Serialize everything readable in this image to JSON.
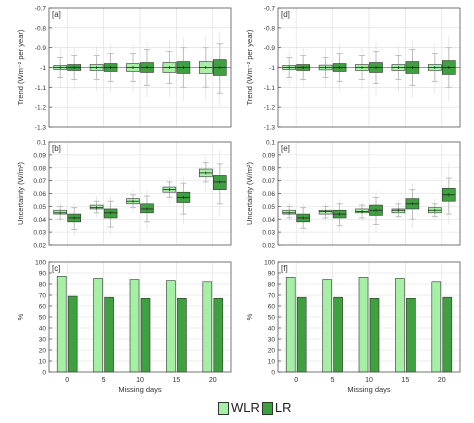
{
  "colors": {
    "wlr": "#a6f0a6",
    "lr": "#3fa03f",
    "reference_line": "#4fb4d8",
    "grid": "#dcdcdc",
    "axis": "#555555",
    "whisker": "#b8b8b8"
  },
  "legend": {
    "position": "bottom-center",
    "items": [
      {
        "key": "wlr",
        "label": "WLR"
      },
      {
        "key": "lr",
        "label": "LR"
      }
    ]
  },
  "chart_data": [
    {
      "panel": "[a]",
      "type": "box",
      "xlabel": "",
      "ylabel": "Trend (Wm⁻² per year)",
      "categories": [
        "0",
        "5",
        "10",
        "15",
        "20"
      ],
      "show_x_ticklabels": false,
      "ylim": [
        -1.3,
        -0.7
      ],
      "yticks": [
        -1.3,
        -1.2,
        -1.1,
        -1.0,
        -0.9,
        -0.8,
        -0.7
      ],
      "ytick_labels": [
        "-1.3",
        "-1.2",
        "-1.1",
        "-1",
        "-0.9",
        "-0.8",
        "-0.7"
      ],
      "grid": true,
      "reference_line": -1.0,
      "series": [
        {
          "name": "WLR",
          "color_key": "wlr",
          "boxes": [
            {
              "whislo": -1.05,
              "q1": -1.01,
              "med": -1.0,
              "q3": -0.99,
              "whishi": -0.95,
              "out_lo": -1.1,
              "out_hi": -0.9
            },
            {
              "whislo": -1.06,
              "q1": -1.015,
              "med": -1.0,
              "q3": -0.985,
              "whishi": -0.94,
              "out_lo": -1.12,
              "out_hi": -0.89
            },
            {
              "whislo": -1.07,
              "q1": -1.02,
              "med": -1.0,
              "q3": -0.98,
              "whishi": -0.93,
              "out_lo": -1.13,
              "out_hi": -0.88
            },
            {
              "whislo": -1.08,
              "q1": -1.025,
              "med": -1.0,
              "q3": -0.975,
              "whishi": -0.92,
              "out_lo": -1.15,
              "out_hi": -0.86
            },
            {
              "whislo": -1.1,
              "q1": -1.03,
              "med": -1.0,
              "q3": -0.97,
              "whishi": -0.9,
              "out_lo": -1.17,
              "out_hi": -0.84
            }
          ]
        },
        {
          "name": "LR",
          "color_key": "lr",
          "boxes": [
            {
              "whislo": -1.06,
              "q1": -1.015,
              "med": -1.0,
              "q3": -0.985,
              "whishi": -0.94,
              "out_lo": -1.11,
              "out_hi": -0.9
            },
            {
              "whislo": -1.07,
              "q1": -1.02,
              "med": -1.0,
              "q3": -0.98,
              "whishi": -0.93,
              "out_lo": -1.13,
              "out_hi": -0.88
            },
            {
              "whislo": -1.09,
              "q1": -1.025,
              "med": -1.0,
              "q3": -0.975,
              "whishi": -0.91,
              "out_lo": -1.15,
              "out_hi": -0.87
            },
            {
              "whislo": -1.1,
              "q1": -1.03,
              "med": -1.0,
              "q3": -0.97,
              "whishi": -0.9,
              "out_lo": -1.17,
              "out_hi": -0.85
            },
            {
              "whislo": -1.13,
              "q1": -1.04,
              "med": -1.0,
              "q3": -0.96,
              "whishi": -0.88,
              "out_lo": -1.2,
              "out_hi": -0.82
            }
          ]
        }
      ]
    },
    {
      "panel": "[d]",
      "type": "box",
      "xlabel": "",
      "ylabel": "Trend (Wm⁻² per year)",
      "categories": [
        "0",
        "5",
        "10",
        "15",
        "20"
      ],
      "show_x_ticklabels": false,
      "ylim": [
        -1.3,
        -0.7
      ],
      "yticks": [
        -1.3,
        -1.2,
        -1.1,
        -1.0,
        -0.9,
        -0.8,
        -0.7
      ],
      "ytick_labels": [
        "-1.3",
        "-1.2",
        "-1.1",
        "-1",
        "-0.9",
        "-0.8",
        "-0.7"
      ],
      "grid": true,
      "reference_line": -1.0,
      "series": [
        {
          "name": "WLR",
          "color_key": "wlr",
          "boxes": [
            {
              "whislo": -1.05,
              "q1": -1.01,
              "med": -1.0,
              "q3": -0.99,
              "whishi": -0.95,
              "out_lo": -1.09,
              "out_hi": -0.91
            },
            {
              "whislo": -1.05,
              "q1": -1.012,
              "med": -1.0,
              "q3": -0.988,
              "whishi": -0.95,
              "out_lo": -1.1,
              "out_hi": -0.9
            },
            {
              "whislo": -1.06,
              "q1": -1.015,
              "med": -1.0,
              "q3": -0.985,
              "whishi": -0.94,
              "out_lo": -1.11,
              "out_hi": -0.9
            },
            {
              "whislo": -1.06,
              "q1": -1.015,
              "med": -1.0,
              "q3": -0.985,
              "whishi": -0.94,
              "out_lo": -1.12,
              "out_hi": -0.89
            },
            {
              "whislo": -1.07,
              "q1": -1.015,
              "med": -1.0,
              "q3": -0.985,
              "whishi": -0.93,
              "out_lo": -1.13,
              "out_hi": -0.88
            }
          ]
        },
        {
          "name": "LR",
          "color_key": "lr",
          "boxes": [
            {
              "whislo": -1.06,
              "q1": -1.015,
              "med": -1.0,
              "q3": -0.985,
              "whishi": -0.94,
              "out_lo": -1.1,
              "out_hi": -0.9
            },
            {
              "whislo": -1.07,
              "q1": -1.02,
              "med": -1.0,
              "q3": -0.98,
              "whishi": -0.93,
              "out_lo": -1.12,
              "out_hi": -0.88
            },
            {
              "whislo": -1.08,
              "q1": -1.025,
              "med": -1.0,
              "q3": -0.975,
              "whishi": -0.92,
              "out_lo": -1.14,
              "out_hi": -0.87
            },
            {
              "whislo": -1.09,
              "q1": -1.03,
              "med": -1.0,
              "q3": -0.97,
              "whishi": -0.91,
              "out_lo": -1.15,
              "out_hi": -0.86
            },
            {
              "whislo": -1.1,
              "q1": -1.035,
              "med": -1.0,
              "q3": -0.965,
              "whishi": -0.9,
              "out_lo": -1.17,
              "out_hi": -0.84
            }
          ]
        }
      ]
    },
    {
      "panel": "[b]",
      "type": "box",
      "xlabel": "",
      "ylabel": "Uncertainty (W/m²)",
      "categories": [
        "0",
        "5",
        "10",
        "15",
        "20"
      ],
      "show_x_ticklabels": false,
      "ylim": [
        0.02,
        0.1
      ],
      "yticks": [
        0.02,
        0.03,
        0.04,
        0.05,
        0.06,
        0.07,
        0.08,
        0.09,
        0.1
      ],
      "ytick_labels": [
        "0.02",
        "0.03",
        "0.04",
        "0.05",
        "0.06",
        "0.07",
        "0.08",
        "0.09",
        "0.1"
      ],
      "grid": true,
      "series": [
        {
          "name": "WLR",
          "color_key": "wlr",
          "boxes": [
            {
              "whislo": 0.04,
              "q1": 0.044,
              "med": 0.045,
              "q3": 0.047,
              "whishi": 0.05,
              "out_lo": 0.037,
              "out_hi": 0.053
            },
            {
              "whislo": 0.045,
              "q1": 0.048,
              "med": 0.049,
              "q3": 0.051,
              "whishi": 0.054,
              "out_lo": 0.042,
              "out_hi": 0.058
            },
            {
              "whislo": 0.049,
              "q1": 0.052,
              "med": 0.054,
              "q3": 0.056,
              "whishi": 0.059,
              "out_lo": 0.045,
              "out_hi": 0.063
            },
            {
              "whislo": 0.057,
              "q1": 0.061,
              "med": 0.063,
              "q3": 0.065,
              "whishi": 0.069,
              "out_lo": 0.053,
              "out_hi": 0.073
            },
            {
              "whislo": 0.069,
              "q1": 0.073,
              "med": 0.076,
              "q3": 0.079,
              "whishi": 0.084,
              "out_lo": 0.062,
              "out_hi": 0.089
            }
          ]
        },
        {
          "name": "LR",
          "color_key": "lr",
          "boxes": [
            {
              "whislo": 0.032,
              "q1": 0.038,
              "med": 0.041,
              "q3": 0.044,
              "whishi": 0.049,
              "out_lo": 0.027,
              "out_hi": 0.053
            },
            {
              "whislo": 0.034,
              "q1": 0.041,
              "med": 0.045,
              "q3": 0.048,
              "whishi": 0.054,
              "out_lo": 0.028,
              "out_hi": 0.058
            },
            {
              "whislo": 0.038,
              "q1": 0.045,
              "med": 0.048,
              "q3": 0.052,
              "whishi": 0.058,
              "out_lo": 0.031,
              "out_hi": 0.063
            },
            {
              "whislo": 0.044,
              "q1": 0.053,
              "med": 0.057,
              "q3": 0.061,
              "whishi": 0.068,
              "out_lo": 0.036,
              "out_hi": 0.073
            },
            {
              "whislo": 0.052,
              "q1": 0.063,
              "med": 0.069,
              "q3": 0.074,
              "whishi": 0.083,
              "out_lo": 0.042,
              "out_hi": 0.094
            }
          ]
        }
      ]
    },
    {
      "panel": "[e]",
      "type": "box",
      "xlabel": "",
      "ylabel": "Uncertainty (W/m²)",
      "categories": [
        "0",
        "5",
        "10",
        "15",
        "20"
      ],
      "show_x_ticklabels": false,
      "ylim": [
        0.02,
        0.1
      ],
      "yticks": [
        0.02,
        0.03,
        0.04,
        0.05,
        0.06,
        0.07,
        0.08,
        0.09,
        0.1
      ],
      "ytick_labels": [
        "0.02",
        "0.03",
        "0.04",
        "0.05",
        "0.06",
        "0.07",
        "0.08",
        "0.09",
        "0.1"
      ],
      "grid": true,
      "series": [
        {
          "name": "WLR",
          "color_key": "wlr",
          "boxes": [
            {
              "whislo": 0.041,
              "q1": 0.044,
              "med": 0.045,
              "q3": 0.047,
              "whishi": 0.05,
              "out_lo": 0.038,
              "out_hi": 0.053
            },
            {
              "whislo": 0.041,
              "q1": 0.044,
              "med": 0.046,
              "q3": 0.047,
              "whishi": 0.05,
              "out_lo": 0.038,
              "out_hi": 0.053
            },
            {
              "whislo": 0.041,
              "q1": 0.045,
              "med": 0.046,
              "q3": 0.048,
              "whishi": 0.051,
              "out_lo": 0.038,
              "out_hi": 0.054
            },
            {
              "whislo": 0.042,
              "q1": 0.045,
              "med": 0.047,
              "q3": 0.048,
              "whishi": 0.052,
              "out_lo": 0.039,
              "out_hi": 0.055
            },
            {
              "whislo": 0.042,
              "q1": 0.045,
              "med": 0.047,
              "q3": 0.049,
              "whishi": 0.052,
              "out_lo": 0.039,
              "out_hi": 0.056
            }
          ]
        },
        {
          "name": "LR",
          "color_key": "lr",
          "boxes": [
            {
              "whislo": 0.033,
              "q1": 0.038,
              "med": 0.041,
              "q3": 0.044,
              "whishi": 0.049,
              "out_lo": 0.028,
              "out_hi": 0.052
            },
            {
              "whislo": 0.035,
              "q1": 0.041,
              "med": 0.044,
              "q3": 0.047,
              "whishi": 0.052,
              "out_lo": 0.029,
              "out_hi": 0.056
            },
            {
              "whislo": 0.036,
              "q1": 0.043,
              "med": 0.047,
              "q3": 0.051,
              "whishi": 0.057,
              "out_lo": 0.03,
              "out_hi": 0.062
            },
            {
              "whislo": 0.04,
              "q1": 0.048,
              "med": 0.052,
              "q3": 0.056,
              "whishi": 0.063,
              "out_lo": 0.033,
              "out_hi": 0.068
            },
            {
              "whislo": 0.044,
              "q1": 0.054,
              "med": 0.059,
              "q3": 0.064,
              "whishi": 0.072,
              "out_lo": 0.036,
              "out_hi": 0.084
            }
          ]
        }
      ]
    },
    {
      "panel": "[c]",
      "type": "bar",
      "xlabel": "Missing days",
      "ylabel": "%",
      "categories": [
        "0",
        "5",
        "10",
        "15",
        "20"
      ],
      "show_x_ticklabels": true,
      "ylim": [
        0,
        100
      ],
      "yticks": [
        0,
        10,
        20,
        30,
        40,
        50,
        60,
        70,
        80,
        90,
        100
      ],
      "ytick_labels": [
        "0",
        "10",
        "20",
        "30",
        "40",
        "50",
        "60",
        "70",
        "80",
        "90",
        "100"
      ],
      "grid": true,
      "series": [
        {
          "name": "WLR",
          "color_key": "wlr",
          "values": [
            87,
            85,
            84,
            83,
            82
          ]
        },
        {
          "name": "LR",
          "color_key": "lr",
          "values": [
            69,
            68,
            67,
            67,
            67
          ]
        }
      ]
    },
    {
      "panel": "[f]",
      "type": "bar",
      "xlabel": "Missing days",
      "ylabel": "%",
      "categories": [
        "0",
        "5",
        "10",
        "15",
        "20"
      ],
      "show_x_ticklabels": true,
      "ylim": [
        0,
        100
      ],
      "yticks": [
        0,
        10,
        20,
        30,
        40,
        50,
        60,
        70,
        80,
        90,
        100
      ],
      "ytick_labels": [
        "0",
        "10",
        "20",
        "30",
        "40",
        "50",
        "60",
        "70",
        "80",
        "90",
        "100"
      ],
      "grid": true,
      "series": [
        {
          "name": "WLR",
          "color_key": "wlr",
          "values": [
            86,
            84,
            86,
            85,
            82
          ]
        },
        {
          "name": "LR",
          "color_key": "lr",
          "values": [
            68,
            68,
            67,
            67,
            68
          ]
        }
      ]
    }
  ]
}
